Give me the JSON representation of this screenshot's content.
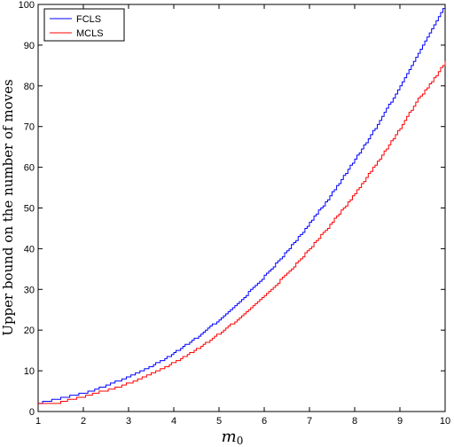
{
  "chart_data": {
    "type": "line",
    "title": "",
    "xlabel": "m",
    "xlabel_subscript": "0",
    "ylabel": "Upper bound on the number of moves",
    "xlim": [
      1,
      10
    ],
    "ylim": [
      0,
      100
    ],
    "xticks": [
      1,
      2,
      3,
      4,
      5,
      6,
      7,
      8,
      9,
      10
    ],
    "yticks": [
      0,
      10,
      20,
      30,
      40,
      50,
      60,
      70,
      80,
      90,
      100
    ],
    "grid": false,
    "legend_position": "top-left",
    "step": 0.05,
    "series": [
      {
        "name": "FCLS",
        "color": "#0000ff",
        "x": [
          1.0,
          1.4,
          1.8,
          2.2,
          2.6,
          3.0,
          3.4,
          3.8,
          4.2,
          4.6,
          5.0,
          5.4,
          5.8,
          6.2,
          6.6,
          7.0,
          7.4,
          7.8,
          8.2,
          8.6,
          9.0,
          9.4,
          9.8,
          10.0
        ],
        "y": [
          2.0,
          3.0,
          4.0,
          5.2,
          6.8,
          8.6,
          10.6,
          13.0,
          15.9,
          19.0,
          22.6,
          26.5,
          30.9,
          35.6,
          40.8,
          46.3,
          52.2,
          58.6,
          65.3,
          72.4,
          80.0,
          87.9,
          96.2,
          100.0
        ]
      },
      {
        "name": "MCLS",
        "color": "#ff0000",
        "x": [
          1.0,
          1.4,
          1.8,
          2.2,
          2.6,
          3.0,
          3.4,
          3.8,
          4.2,
          4.6,
          5.0,
          5.4,
          5.8,
          6.2,
          6.6,
          7.0,
          7.4,
          7.8,
          8.2,
          8.6,
          9.0,
          9.4,
          9.8,
          10.0
        ],
        "y": [
          2.0,
          2.0,
          3.2,
          4.3,
          5.5,
          7.0,
          8.8,
          10.9,
          13.3,
          16.0,
          19.2,
          22.6,
          26.4,
          30.6,
          35.1,
          40.0,
          45.2,
          50.7,
          56.7,
          63.0,
          69.7,
          76.8,
          82.5,
          86.0
        ]
      }
    ]
  }
}
